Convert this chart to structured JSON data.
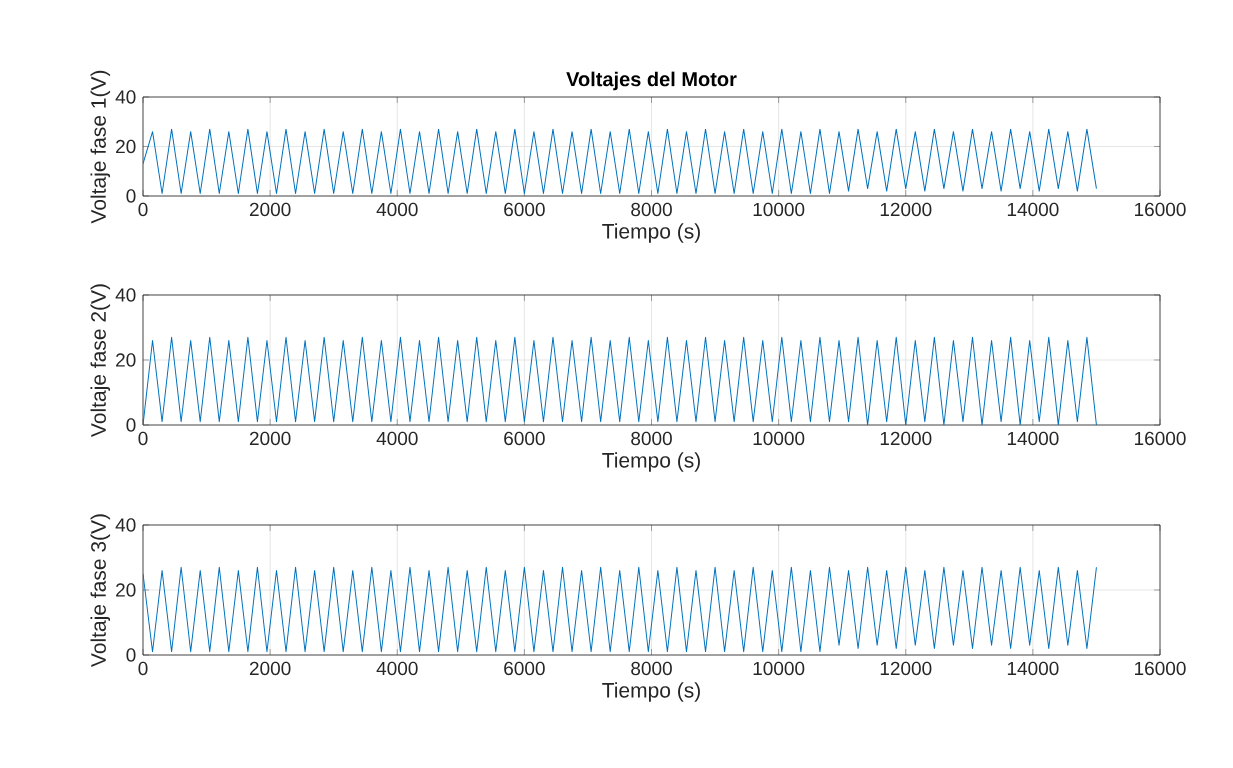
{
  "chart_data": [
    {
      "type": "line",
      "title": "Voltajes del Motor",
      "xlabel": "Tiempo (s)",
      "ylabel": "Voltaje fase 1(V)",
      "xlim": [
        0,
        16000
      ],
      "ylim": [
        0,
        40
      ],
      "xticks": [
        0,
        2000,
        4000,
        6000,
        8000,
        10000,
        12000,
        14000,
        16000
      ],
      "yticks": [
        0,
        20,
        40
      ],
      "grid": true,
      "x": [
        0,
        150,
        300,
        450,
        600,
        750,
        900,
        1050,
        1200,
        1350,
        1500,
        1650,
        1800,
        1950,
        2100,
        2250,
        2400,
        2550,
        2700,
        2850,
        3000,
        3150,
        3300,
        3450,
        3600,
        3750,
        3900,
        4050,
        4200,
        4350,
        4500,
        4650,
        4800,
        4950,
        5100,
        5250,
        5400,
        5550,
        5700,
        5850,
        6000,
        6150,
        6300,
        6450,
        6600,
        6750,
        6900,
        7050,
        7200,
        7350,
        7500,
        7650,
        7800,
        7950,
        8100,
        8250,
        8400,
        8550,
        8700,
        8850,
        9000,
        9150,
        9300,
        9450,
        9600,
        9750,
        9900,
        10050,
        10200,
        10350,
        10500,
        10650,
        10800,
        10950,
        11100,
        11250,
        11400,
        11550,
        11700,
        11850,
        12000,
        12150,
        12300,
        12450,
        12600,
        12750,
        12900,
        13050,
        13200,
        13350,
        13500,
        13650,
        13800,
        13950,
        14100,
        14250,
        14400,
        14550,
        14700,
        14850,
        15000
      ],
      "series": [
        {
          "color": "#0072bd",
          "values": [
            13,
            26,
            1,
            27,
            1,
            26,
            1,
            27,
            1,
            26,
            1,
            27,
            1,
            26,
            1,
            27,
            1,
            26,
            1,
            27,
            1,
            26,
            1,
            27,
            1,
            26,
            1,
            27,
            1,
            26,
            1,
            27,
            1,
            26,
            1,
            27,
            1,
            26,
            1,
            27,
            1,
            26,
            1,
            27,
            1,
            26,
            1,
            27,
            1,
            26,
            1,
            27,
            1,
            26,
            1,
            27,
            1,
            26,
            1,
            27,
            1,
            26,
            1,
            27,
            1,
            26,
            1,
            27,
            1,
            26,
            1,
            27,
            1,
            26,
            2,
            27,
            3,
            26,
            2,
            27,
            3,
            26,
            2,
            27,
            3,
            26,
            2,
            27,
            3,
            26,
            2,
            27,
            3,
            26,
            2,
            27,
            3,
            26,
            2,
            27,
            3
          ]
        }
      ]
    },
    {
      "type": "line",
      "xlabel": "Tiempo (s)",
      "ylabel": "Voltaje fase 2(V)",
      "xlim": [
        0,
        16000
      ],
      "ylim": [
        0,
        40
      ],
      "xticks": [
        0,
        2000,
        4000,
        6000,
        8000,
        10000,
        12000,
        14000,
        16000
      ],
      "yticks": [
        0,
        20,
        40
      ],
      "grid": true,
      "x": [
        0,
        150,
        300,
        450,
        600,
        750,
        900,
        1050,
        1200,
        1350,
        1500,
        1650,
        1800,
        1950,
        2100,
        2250,
        2400,
        2550,
        2700,
        2850,
        3000,
        3150,
        3300,
        3450,
        3600,
        3750,
        3900,
        4050,
        4200,
        4350,
        4500,
        4650,
        4800,
        4950,
        5100,
        5250,
        5400,
        5550,
        5700,
        5850,
        6000,
        6150,
        6300,
        6450,
        6600,
        6750,
        6900,
        7050,
        7200,
        7350,
        7500,
        7650,
        7800,
        7950,
        8100,
        8250,
        8400,
        8550,
        8700,
        8850,
        9000,
        9150,
        9300,
        9450,
        9600,
        9750,
        9900,
        10050,
        10200,
        10350,
        10500,
        10650,
        10800,
        10950,
        11100,
        11250,
        11400,
        11550,
        11700,
        11850,
        12000,
        12150,
        12300,
        12450,
        12600,
        12750,
        12900,
        13050,
        13200,
        13350,
        13500,
        13650,
        13800,
        13950,
        14100,
        14250,
        14400,
        14550,
        14700,
        14850,
        15000
      ],
      "series": [
        {
          "color": "#0072bd",
          "values": [
            0,
            26,
            1,
            27,
            1,
            26,
            1,
            27,
            1,
            26,
            1,
            27,
            1,
            26,
            1,
            27,
            1,
            26,
            1,
            27,
            1,
            26,
            1,
            27,
            1,
            26,
            1,
            27,
            1,
            26,
            1,
            27,
            1,
            26,
            1,
            27,
            1,
            26,
            1,
            27,
            1,
            26,
            1,
            27,
            1,
            26,
            1,
            27,
            1,
            26,
            1,
            27,
            1,
            26,
            1,
            27,
            1,
            26,
            1,
            27,
            1,
            26,
            1,
            27,
            1,
            26,
            1,
            27,
            1,
            26,
            1,
            27,
            1,
            26,
            1,
            27,
            0,
            26,
            1,
            27,
            0,
            26,
            1,
            27,
            0,
            26,
            1,
            27,
            0,
            26,
            1,
            27,
            0,
            26,
            1,
            27,
            0,
            26,
            1,
            27,
            0
          ]
        }
      ]
    },
    {
      "type": "line",
      "xlabel": "Tiempo (s)",
      "ylabel": "Voltaje fase 3(V)",
      "xlim": [
        0,
        16000
      ],
      "ylim": [
        0,
        40
      ],
      "xticks": [
        0,
        2000,
        4000,
        6000,
        8000,
        10000,
        12000,
        14000,
        16000
      ],
      "yticks": [
        0,
        20,
        40
      ],
      "grid": true,
      "x": [
        0,
        150,
        300,
        450,
        600,
        750,
        900,
        1050,
        1200,
        1350,
        1500,
        1650,
        1800,
        1950,
        2100,
        2250,
        2400,
        2550,
        2700,
        2850,
        3000,
        3150,
        3300,
        3450,
        3600,
        3750,
        3900,
        4050,
        4200,
        4350,
        4500,
        4650,
        4800,
        4950,
        5100,
        5250,
        5400,
        5550,
        5700,
        5850,
        6000,
        6150,
        6300,
        6450,
        6600,
        6750,
        6900,
        7050,
        7200,
        7350,
        7500,
        7650,
        7800,
        7950,
        8100,
        8250,
        8400,
        8550,
        8700,
        8850,
        9000,
        9150,
        9300,
        9450,
        9600,
        9750,
        9900,
        10050,
        10200,
        10350,
        10500,
        10650,
        10800,
        10950,
        11100,
        11250,
        11400,
        11550,
        11700,
        11850,
        12000,
        12150,
        12300,
        12450,
        12600,
        12750,
        12900,
        13050,
        13200,
        13350,
        13500,
        13650,
        13800,
        13950,
        14100,
        14250,
        14400,
        14550,
        14700,
        14850,
        15000
      ],
      "series": [
        {
          "color": "#0072bd",
          "values": [
            25,
            1,
            26,
            1,
            27,
            1,
            26,
            1,
            27,
            1,
            26,
            1,
            27,
            1,
            26,
            1,
            27,
            1,
            26,
            1,
            27,
            1,
            26,
            1,
            27,
            1,
            26,
            1,
            27,
            1,
            26,
            1,
            27,
            1,
            26,
            1,
            27,
            1,
            26,
            1,
            27,
            1,
            26,
            1,
            27,
            1,
            26,
            1,
            27,
            1,
            26,
            1,
            27,
            1,
            26,
            1,
            27,
            1,
            26,
            1,
            27,
            1,
            26,
            1,
            27,
            1,
            26,
            1,
            27,
            1,
            26,
            1,
            27,
            3,
            26,
            2,
            27,
            3,
            26,
            2,
            27,
            3,
            26,
            2,
            27,
            3,
            26,
            2,
            27,
            3,
            26,
            2,
            27,
            3,
            26,
            2,
            27,
            3,
            26,
            2,
            27
          ]
        }
      ]
    }
  ]
}
